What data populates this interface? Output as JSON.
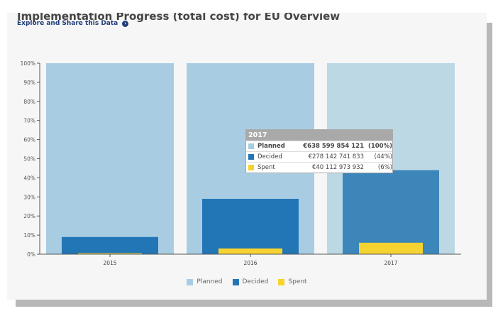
{
  "header": {
    "title": "Implementation Progress (total cost) for EU Overview",
    "explore_link": "Explore and Share this Data"
  },
  "colors": {
    "planned": "#a8cde3",
    "planned_highlight": "#bcd8e5",
    "decided": "#2376b5",
    "decided_highlight": "#3d86ba",
    "spent": "#f6d330"
  },
  "chart_data": {
    "type": "bar",
    "categories": [
      "2015",
      "2016",
      "2017"
    ],
    "series": [
      {
        "name": "Planned",
        "values": [
          100,
          100,
          100
        ]
      },
      {
        "name": "Decided",
        "values": [
          9,
          29,
          44
        ]
      },
      {
        "name": "Spent",
        "values": [
          0.5,
          3,
          6
        ]
      }
    ],
    "ylim": [
      0,
      100
    ],
    "yticks": [
      "0%",
      "10%",
      "20%",
      "30%",
      "40%",
      "50%",
      "60%",
      "70%",
      "80%",
      "90%",
      "100%"
    ],
    "legend": [
      "Planned",
      "Decided",
      "Spent"
    ],
    "legend_position": "bottom",
    "grid": false,
    "highlighted_category": "2017"
  },
  "tooltip": {
    "category": "2017",
    "rows": [
      {
        "name": "Planned",
        "value": "€638 599 854 121",
        "pct": "(100%)"
      },
      {
        "name": "Decided",
        "value": "€278 142 741 833",
        "pct": "(44%)"
      },
      {
        "name": "Spent",
        "value": "€40 112 973 932",
        "pct": "(6%)"
      }
    ]
  }
}
